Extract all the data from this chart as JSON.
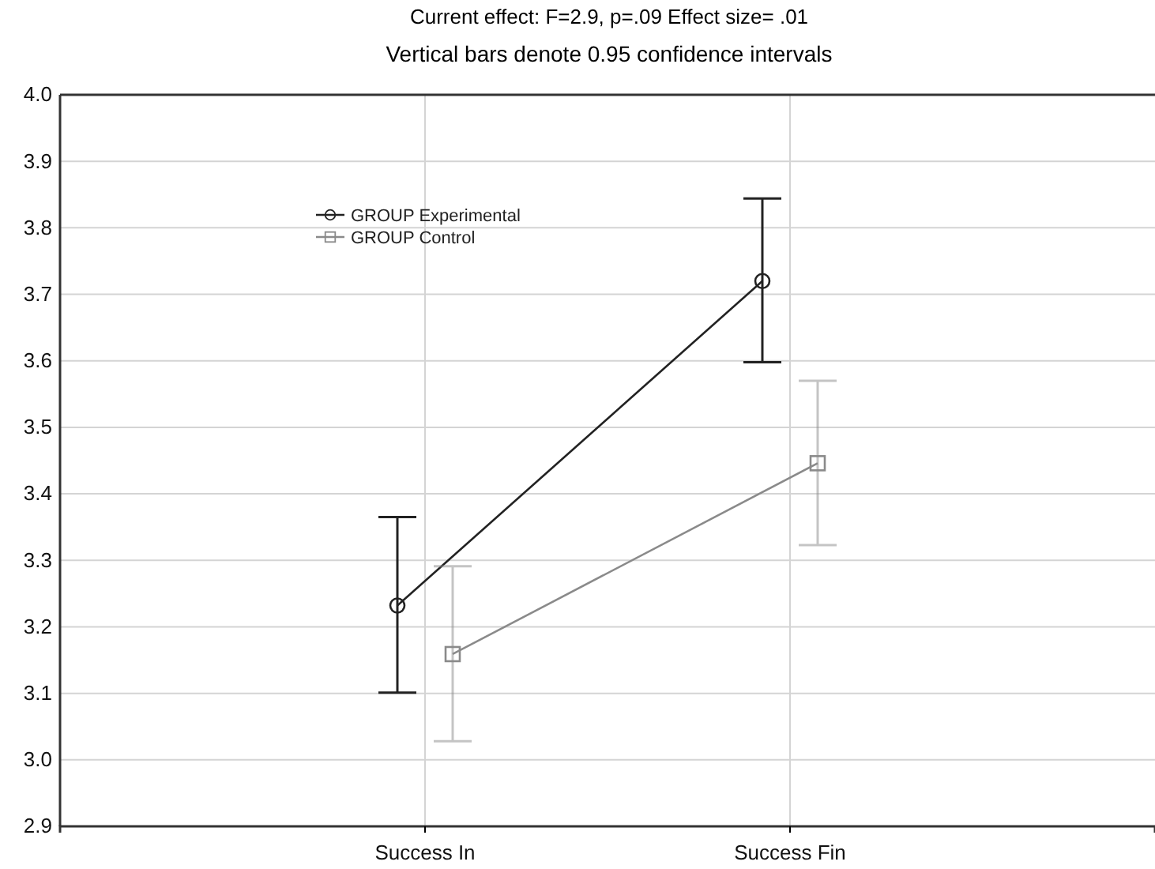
{
  "chart_data": {
    "type": "line",
    "title": "Current effect: F=2.9, p=.09 Effect size= .01",
    "subtitle": "Vertical bars denote 0.95 confidence intervals",
    "categories": [
      "Success In",
      "Success Fin"
    ],
    "series": [
      {
        "name": "GROUP Experimental",
        "color": "#222222",
        "marker": "circle",
        "values": [
          3.232,
          3.72
        ],
        "errors": [
          [
            3.101,
            3.365
          ],
          [
            3.598,
            3.844
          ]
        ]
      },
      {
        "name": "GROUP Control",
        "color": "#8a8a8a",
        "marker": "square",
        "values": [
          3.159,
          3.446
        ],
        "errors": [
          [
            3.028,
            3.291
          ],
          [
            3.323,
            3.57
          ]
        ]
      }
    ],
    "ylim": [
      2.9,
      4.0
    ],
    "yticks": [
      {
        "value": 2.9,
        "label": "2.9"
      },
      {
        "value": 3.0,
        "label": "3.0"
      },
      {
        "value": 3.1,
        "label": "3.1"
      },
      {
        "value": 3.2,
        "label": "3.2"
      },
      {
        "value": 3.3,
        "label": "3.3"
      },
      {
        "value": 3.4,
        "label": "3.4"
      },
      {
        "value": 3.5,
        "label": "3.5"
      },
      {
        "value": 3.6,
        "label": "3.6"
      },
      {
        "value": 3.7,
        "label": "3.7"
      },
      {
        "value": 3.8,
        "label": "3.8"
      },
      {
        "value": 3.9,
        "label": "3.9"
      },
      {
        "value": 4.0,
        "label": "4.0"
      }
    ],
    "grid": true,
    "legend": "top left"
  }
}
